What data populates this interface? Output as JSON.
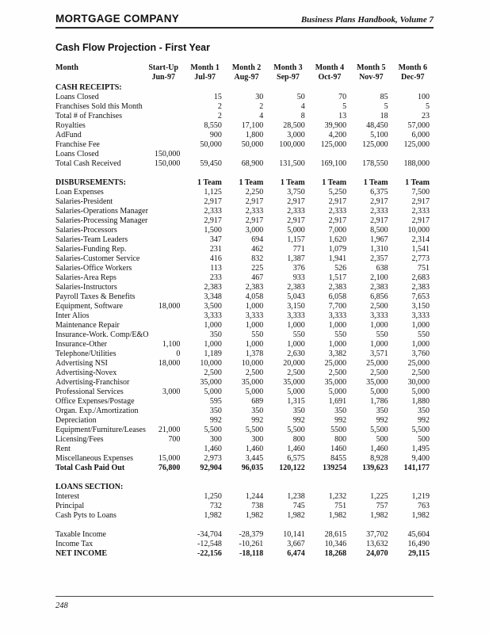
{
  "header": {
    "left": "MORTGAGE COMPANY",
    "right": "Business Plans Handbook, Volume 7"
  },
  "title": "Cash Flow Projection - First Year",
  "footer": {
    "page_number": "248"
  },
  "colors": {
    "text": "#121212",
    "rule": "#2b2b2b",
    "page": "#fefefe"
  },
  "table": {
    "columns": [
      {
        "label": "Month",
        "sub": ""
      },
      {
        "label": "Start-Up",
        "sub": "Jun-97"
      },
      {
        "label": "Month 1",
        "sub": "Jul-97"
      },
      {
        "label": "Month 2",
        "sub": "Aug-97"
      },
      {
        "label": "Month 3",
        "sub": "Sep-97"
      },
      {
        "label": "Month 4",
        "sub": "Oct-97"
      },
      {
        "label": "Month 5",
        "sub": "Nov-97"
      },
      {
        "label": "Month 6",
        "sub": "Dec-97"
      }
    ],
    "rows": [
      {
        "label": "CASH RECEIPTS:",
        "style": "section",
        "values": [
          "",
          "",
          "",
          "",
          "",
          "",
          ""
        ]
      },
      {
        "label": "Loans Closed",
        "style": "normal",
        "values": [
          "",
          "15",
          "30",
          "50",
          "70",
          "85",
          "100"
        ]
      },
      {
        "label": "Franchises Sold this Month",
        "style": "normal",
        "values": [
          "",
          "2",
          "2",
          "4",
          "5",
          "5",
          "5"
        ]
      },
      {
        "label": "Total # of Franchises",
        "style": "normal",
        "values": [
          "",
          "2",
          "4",
          "8",
          "13",
          "18",
          "23"
        ]
      },
      {
        "label": "Royalties",
        "style": "normal",
        "values": [
          "",
          "8,550",
          "17,100",
          "28,500",
          "39,900",
          "48,450",
          "57,000"
        ]
      },
      {
        "label": "AdFund",
        "style": "normal",
        "values": [
          "",
          "900",
          "1,800",
          "3,000",
          "4,200",
          "5,100",
          "6,000"
        ]
      },
      {
        "label": "Franchise Fee",
        "style": "normal",
        "values": [
          "",
          "50,000",
          "50,000",
          "100,000",
          "125,000",
          "125,000",
          "125,000"
        ]
      },
      {
        "label": "Loans Closed",
        "style": "normal",
        "values": [
          "150,000",
          "",
          "",
          "",
          "",
          "",
          ""
        ]
      },
      {
        "label": "Total Cash Received",
        "style": "normal",
        "values": [
          "150,000",
          "59,450",
          "68,900",
          "131,500",
          "169,100",
          "178,550",
          "188,000"
        ]
      },
      {
        "label": "",
        "style": "spacer",
        "values": [
          "",
          "",
          "",
          "",
          "",
          "",
          ""
        ]
      },
      {
        "label": "DISBURSEMENTS:",
        "style": "bold section",
        "values": [
          "",
          "1 Team",
          "1 Team",
          "1 Team",
          "1 Team",
          "1 Team",
          "1 Team"
        ]
      },
      {
        "label": "Loan Expenses",
        "style": "normal",
        "values": [
          "",
          "1,125",
          "2,250",
          "3,750",
          "5,250",
          "6,375",
          "7,500"
        ]
      },
      {
        "label": "Salaries-President",
        "style": "normal",
        "values": [
          "",
          "2,917",
          "2,917",
          "2,917",
          "2,917",
          "2,917",
          "2,917"
        ]
      },
      {
        "label": "Salaries-Operations Manager",
        "style": "normal",
        "values": [
          "",
          "2,333",
          "2,333",
          "2,333",
          "2,333",
          "2,333",
          "2,333"
        ]
      },
      {
        "label": "Salaries-Processing Manager",
        "style": "normal",
        "values": [
          "",
          "2,917",
          "2,917",
          "2,917",
          "2,917",
          "2,917",
          "2,917"
        ]
      },
      {
        "label": "Salaries-Processors",
        "style": "normal",
        "values": [
          "",
          "1,500",
          "3,000",
          "5,000",
          "7,000",
          "8,500",
          "10,000"
        ]
      },
      {
        "label": "Salaries-Team Leaders",
        "style": "normal",
        "values": [
          "",
          "347",
          "694",
          "1,157",
          "1,620",
          "1,967",
          "2,314"
        ]
      },
      {
        "label": "Salaries-Funding Rep.",
        "style": "normal",
        "values": [
          "",
          "231",
          "462",
          "771",
          "1,079",
          "1,310",
          "1,541"
        ]
      },
      {
        "label": "Salaries-Customer Service",
        "style": "normal",
        "values": [
          "",
          "416",
          "832",
          "1,387",
          "1,941",
          "2,357",
          "2,773"
        ]
      },
      {
        "label": "Salaries-Office Workers",
        "style": "normal",
        "values": [
          "",
          "113",
          "225",
          "376",
          "526",
          "638",
          "751"
        ]
      },
      {
        "label": "Salaries-Area Reps",
        "style": "normal",
        "values": [
          "",
          "233",
          "467",
          "933",
          "1,517",
          "2,100",
          "2,683"
        ]
      },
      {
        "label": "Salaries-Instructors",
        "style": "normal",
        "values": [
          "",
          "2,383",
          "2,383",
          "2,383",
          "2,383",
          "2,383",
          "2,383"
        ]
      },
      {
        "label": "Payroll Taxes & Benefits",
        "style": "normal",
        "values": [
          "",
          "3,348",
          "4,058",
          "5,043",
          "6,058",
          "6,856",
          "7,653"
        ]
      },
      {
        "label": "Equipment, Software",
        "style": "normal",
        "values": [
          "18,000",
          "3,500",
          "1,000",
          "3,150",
          "7,700",
          "2,500",
          "3,150"
        ]
      },
      {
        "label": "Inter Alios",
        "style": "normal",
        "values": [
          "",
          "3,333",
          "3,333",
          "3,333",
          "3,333",
          "3,333",
          "3,333"
        ]
      },
      {
        "label": "Maintenance Repair",
        "style": "normal",
        "values": [
          "",
          "1,000",
          "1,000",
          "1,000",
          "1,000",
          "1,000",
          "1,000"
        ]
      },
      {
        "label": "Insurance-Work. Comp/E&O",
        "style": "normal",
        "values": [
          "",
          "350",
          "550",
          "550",
          "550",
          "550",
          "550"
        ]
      },
      {
        "label": "Insurance-Other",
        "style": "normal",
        "values": [
          "1,100",
          "1,000",
          "1,000",
          "1,000",
          "1,000",
          "1,000",
          "1,000"
        ]
      },
      {
        "label": "Telephone/Utilities",
        "style": "normal",
        "values": [
          "0",
          "1,189",
          "1,378",
          "2,630",
          "3,382",
          "3,571",
          "3,760"
        ]
      },
      {
        "label": "Advertising NSI",
        "style": "normal",
        "values": [
          "18,000",
          "10,000",
          "10,000",
          "20,000",
          "25,000",
          "25,000",
          "25,000"
        ]
      },
      {
        "label": "Advertising-Novex",
        "style": "normal",
        "values": [
          "",
          "2,500",
          "2,500",
          "2,500",
          "2,500",
          "2,500",
          "2,500"
        ]
      },
      {
        "label": "Advertising-Franchisor",
        "style": "normal",
        "values": [
          "",
          "35,000",
          "35,000",
          "35,000",
          "35,000",
          "35,000",
          "30,000"
        ]
      },
      {
        "label": "Professional Services",
        "style": "normal",
        "values": [
          "3,000",
          "5,000",
          "5,000",
          "5,000",
          "5,000",
          "5,000",
          "5,000"
        ]
      },
      {
        "label": "Office Expenses/Postage",
        "style": "normal",
        "values": [
          "",
          "595",
          "689",
          "1,315",
          "1,691",
          "1,786",
          "1,880"
        ]
      },
      {
        "label": "Organ. Exp./Amortization",
        "style": "normal",
        "values": [
          "",
          "350",
          "350",
          "350",
          "350",
          "350",
          "350"
        ]
      },
      {
        "label": "Depreciation",
        "style": "normal",
        "values": [
          "",
          "992",
          "992",
          "992",
          "992",
          "992",
          "992"
        ]
      },
      {
        "label": "Equipment/Furniture/Leases",
        "style": "normal",
        "values": [
          "21,000",
          "5,500",
          "5,500",
          "5,500",
          "5500",
          "5,500",
          "5,500"
        ]
      },
      {
        "label": "Licensing/Fees",
        "style": "normal",
        "values": [
          "700",
          "300",
          "300",
          "800",
          "800",
          "500",
          "500"
        ]
      },
      {
        "label": "Rent",
        "style": "normal",
        "values": [
          "",
          "1,460",
          "1,460",
          "1,460",
          "1460",
          "1,460",
          "1,495"
        ]
      },
      {
        "label": "Miscellaneous Expenses",
        "style": "normal",
        "values": [
          "15,000",
          "2,973",
          "3,445",
          "6,575",
          "8455",
          "8,928",
          "9,400"
        ]
      },
      {
        "label": "Total Cash Paid Out",
        "style": "bold",
        "values": [
          "76,800",
          "92,904",
          "96,035",
          "120,122",
          "139254",
          "139,623",
          "141,177"
        ]
      },
      {
        "label": "",
        "style": "spacer",
        "values": [
          "",
          "",
          "",
          "",
          "",
          "",
          ""
        ]
      },
      {
        "label": "LOANS SECTION:",
        "style": "section",
        "values": [
          "",
          "",
          "",
          "",
          "",
          "",
          ""
        ]
      },
      {
        "label": "Interest",
        "style": "normal",
        "values": [
          "",
          "1,250",
          "1,244",
          "1,238",
          "1,232",
          "1,225",
          "1,219"
        ]
      },
      {
        "label": "Principal",
        "style": "normal",
        "values": [
          "",
          "732",
          "738",
          "745",
          "751",
          "757",
          "763"
        ]
      },
      {
        "label": "Cash Pyts to Loans",
        "style": "normal",
        "values": [
          "",
          "1,982",
          "1,982",
          "1,982",
          "1,982",
          "1,982",
          "1,982"
        ]
      },
      {
        "label": "",
        "style": "spacer",
        "values": [
          "",
          "",
          "",
          "",
          "",
          "",
          ""
        ]
      },
      {
        "label": "Taxable Income",
        "style": "normal",
        "values": [
          "",
          "-34,704",
          "-28,379",
          "10,141",
          "28,615",
          "37,702",
          "45,604"
        ]
      },
      {
        "label": "Income Tax",
        "style": "normal",
        "values": [
          "",
          "-12,548",
          "-10,261",
          "3,667",
          "10,346",
          "13,632",
          "16,490"
        ]
      },
      {
        "label": "NET INCOME",
        "style": "bold",
        "values": [
          "",
          "-22,156",
          "-18,118",
          "6,474",
          "18,268",
          "24,070",
          "29,115"
        ]
      }
    ]
  }
}
